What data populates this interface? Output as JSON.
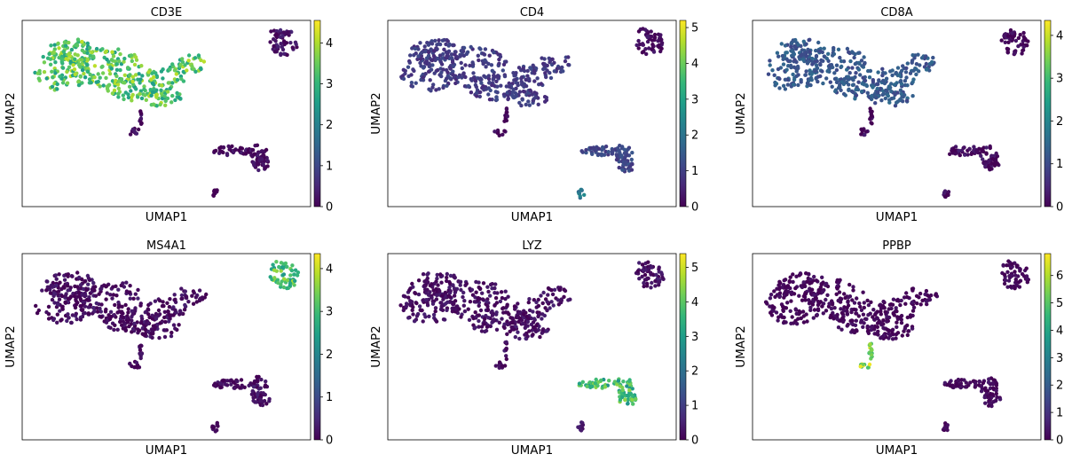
{
  "chart_data": [
    {
      "type": "scatter",
      "title": "CD3E",
      "xlabel": "UMAP1",
      "ylabel": "UMAP2",
      "colorbar": {
        "colormap": "viridis",
        "vmin": 0,
        "vmax": 4.55,
        "ticks": [
          0,
          1,
          2,
          3,
          4
        ]
      },
      "cluster_expression": {
        "T-cell island": 3.3,
        "B-cell island": 0.2,
        "Platelet stalk": 0.1,
        "Monocyte island": 0.1,
        "Small strip": 0.0
      }
    },
    {
      "type": "scatter",
      "title": "CD4",
      "xlabel": "UMAP1",
      "ylabel": "UMAP2",
      "colorbar": {
        "colormap": "viridis",
        "vmin": 0,
        "vmax": 5.2,
        "ticks": [
          0,
          1,
          2,
          3,
          4,
          5
        ]
      },
      "cluster_expression": {
        "T-cell island": 0.9,
        "B-cell island": 0.1,
        "Platelet stalk": 0.1,
        "Monocyte island": 1.1,
        "Small strip": 2.2
      }
    },
    {
      "type": "scatter",
      "title": "CD8A",
      "xlabel": "UMAP1",
      "ylabel": "UMAP2",
      "colorbar": {
        "colormap": "viridis",
        "vmin": 0,
        "vmax": 4.35,
        "ticks": [
          0,
          1,
          2,
          3,
          4
        ]
      },
      "cluster_expression": {
        "T-cell island": 1.2,
        "B-cell island": 0.0,
        "Platelet stalk": 0.1,
        "Monocyte island": 0.1,
        "Small strip": 0.1
      }
    },
    {
      "type": "scatter",
      "title": "MS4A1",
      "xlabel": "UMAP1",
      "ylabel": "UMAP2",
      "colorbar": {
        "colormap": "viridis",
        "vmin": 0,
        "vmax": 4.35,
        "ticks": [
          0,
          1,
          2,
          3,
          4
        ]
      },
      "cluster_expression": {
        "T-cell island": 0.1,
        "B-cell island": 3.0,
        "Platelet stalk": 0.1,
        "Monocyte island": 0.1,
        "Small strip": 0.0
      }
    },
    {
      "type": "scatter",
      "title": "LYZ",
      "xlabel": "UMAP1",
      "ylabel": "UMAP2",
      "colorbar": {
        "colormap": "viridis",
        "vmin": 0,
        "vmax": 5.4,
        "ticks": [
          0,
          1,
          2,
          3,
          4,
          5
        ]
      },
      "cluster_expression": {
        "T-cell island": 0.2,
        "B-cell island": 0.2,
        "Platelet stalk": 0.2,
        "Monocyte island": 3.6,
        "Small strip": 0.4
      }
    },
    {
      "type": "scatter",
      "title": "PPBP",
      "xlabel": "UMAP1",
      "ylabel": "UMAP2",
      "colorbar": {
        "colormap": "viridis",
        "vmin": 0,
        "vmax": 6.8,
        "ticks": [
          0,
          1,
          2,
          3,
          4,
          5,
          6
        ]
      },
      "cluster_expression": {
        "T-cell island": 0.1,
        "B-cell island": 0.1,
        "Platelet stalk": 5.6,
        "Monocyte island": 0.2,
        "Small strip": 0.1
      }
    }
  ]
}
